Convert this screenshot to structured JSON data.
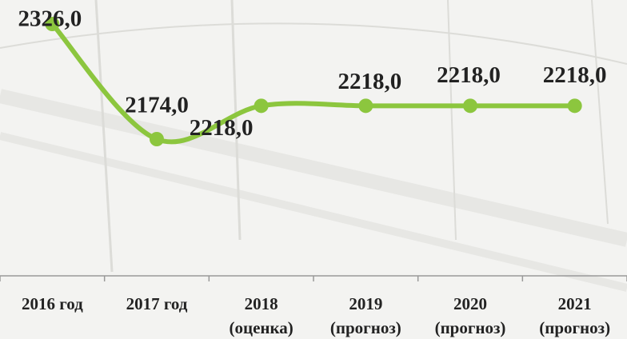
{
  "chart_data": {
    "type": "line",
    "categories": [
      [
        "2016 год"
      ],
      [
        "2017 год"
      ],
      [
        "2018",
        "(оценка)"
      ],
      [
        "2019",
        "(прогноз)"
      ],
      [
        "2020",
        "(прогноз)"
      ],
      [
        "2021",
        "(прогноз)"
      ]
    ],
    "series": [
      {
        "color": "#8cc63e",
        "values": [
          2326,
          2174,
          2218,
          2218,
          2218,
          2218
        ],
        "value_labels": [
          "2326,0",
          "2174,0",
          "2218,0",
          "2218,0",
          "2218,0",
          "2218,0"
        ]
      }
    ]
  }
}
